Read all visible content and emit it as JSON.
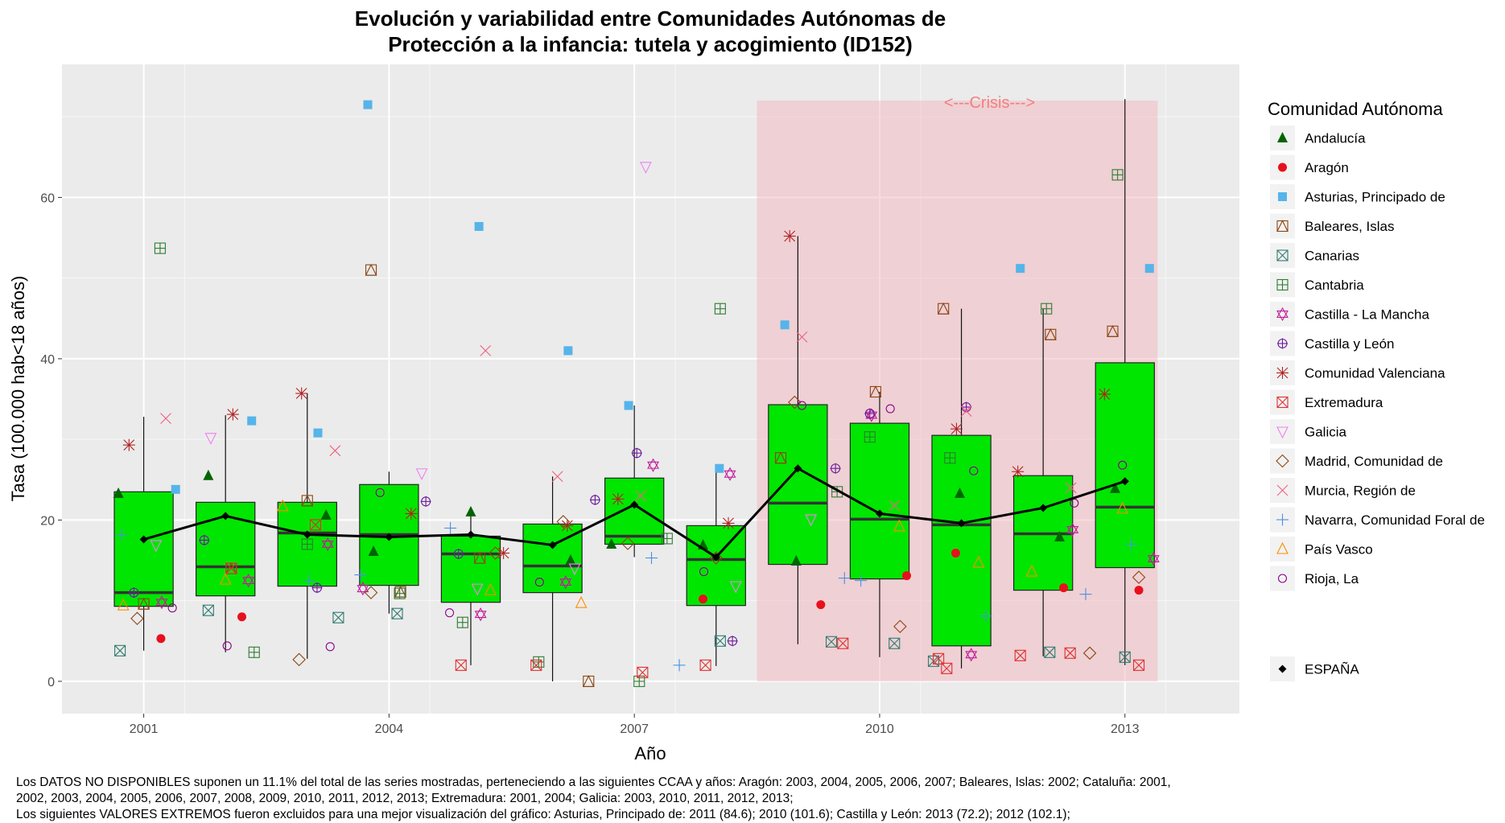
{
  "title": [
    "Evolución y variabilidad entre Comunidades Autónomas de",
    "Protección a la infancia: tutela y acogimiento (ID152)"
  ],
  "crisis_label": "<---Crisis--->",
  "legend": {
    "title": "Comunidad Autónoma",
    "items": [
      {
        "name": "Andalucía",
        "color": "#006400",
        "shape": "triangle-filled"
      },
      {
        "name": "Aragón",
        "color": "#e8101c",
        "shape": "circle-filled"
      },
      {
        "name": "Asturias, Principado de",
        "color": "#56b4e9",
        "shape": "square-filled"
      },
      {
        "name": "Baleares, Islas",
        "color": "#8b4513",
        "shape": "square-triangle"
      },
      {
        "name": "Canarias",
        "color": "#2f7b6f",
        "shape": "square-x"
      },
      {
        "name": "Cantabria",
        "color": "#2e7d32",
        "shape": "square-plus"
      },
      {
        "name": "Castilla - La Mancha",
        "color": "#c21a9a",
        "shape": "star-david"
      },
      {
        "name": "Castilla y León",
        "color": "#6a1b9a",
        "shape": "circle-plus"
      },
      {
        "name": "Comunidad Valenciana",
        "color": "#b22222",
        "shape": "asterisk"
      },
      {
        "name": "Extremadura",
        "color": "#e03030",
        "shape": "square-x"
      },
      {
        "name": "Galicia",
        "color": "#ee82ee",
        "shape": "triangle-down"
      },
      {
        "name": "Madrid, Comunidad de",
        "color": "#8b4513",
        "shape": "diamond"
      },
      {
        "name": "Murcia, Región de",
        "color": "#f06080",
        "shape": "x"
      },
      {
        "name": "Navarra, Comunidad Foral de",
        "color": "#4a90e2",
        "shape": "plus"
      },
      {
        "name": "País Vasco",
        "color": "#ff8c00",
        "shape": "triangle"
      },
      {
        "name": "Rioja, La",
        "color": "#8b008b",
        "shape": "circle"
      }
    ],
    "spain": {
      "name": "ESPAÑA",
      "color": "#000000",
      "shape": "diamond-filled"
    }
  },
  "chart_data": {
    "type": "box",
    "xlabel": "Año",
    "ylabel": "Tasa (100.000 hab<18 años)",
    "x_ticks": [
      2001,
      2004,
      2007,
      2010,
      2013
    ],
    "xlim": [
      2000,
      2014.4
    ],
    "y_ticks": [
      0,
      20,
      40,
      60
    ],
    "ylim": [
      -4,
      76.5
    ],
    "crisis_span": {
      "from": 2008.5,
      "to": 2013.4,
      "ymin": 0,
      "ymax": 72
    },
    "boxes": [
      {
        "year": 2001,
        "q1": 9.3,
        "median": 11.0,
        "q3": 23.5,
        "low": 3.8,
        "high": 32.8
      },
      {
        "year": 2002,
        "q1": 10.6,
        "median": 14.2,
        "q3": 22.2,
        "low": 3.6,
        "high": 33.0
      },
      {
        "year": 2003,
        "q1": 11.8,
        "median": 18.4,
        "q3": 22.2,
        "low": 2.8,
        "high": 35.7
      },
      {
        "year": 2004,
        "q1": 11.9,
        "median": 18.2,
        "q3": 24.4,
        "low": 8.4,
        "high": 26.0
      },
      {
        "year": 2005,
        "q1": 9.8,
        "median": 15.8,
        "q3": 18.0,
        "low": 2.0,
        "high": 21.0
      },
      {
        "year": 2006,
        "q1": 11.0,
        "median": 14.3,
        "q3": 19.5,
        "low": 0.0,
        "high": 25.4
      },
      {
        "year": 2007,
        "q1": 17.0,
        "median": 18.0,
        "q3": 25.2,
        "low": 15.4,
        "high": 34.2
      },
      {
        "year": 2008,
        "q1": 9.4,
        "median": 15.1,
        "q3": 19.3,
        "low": 1.9,
        "high": 26.4
      },
      {
        "year": 2009,
        "q1": 14.5,
        "median": 22.1,
        "q3": 34.3,
        "low": 4.6,
        "high": 55.2
      },
      {
        "year": 2010,
        "q1": 12.7,
        "median": 20.1,
        "q3": 32.0,
        "low": 3.0,
        "high": 35.9
      },
      {
        "year": 2011,
        "q1": 4.4,
        "median": 19.4,
        "q3": 30.5,
        "low": 1.6,
        "high": 46.2
      },
      {
        "year": 2012,
        "q1": 11.3,
        "median": 18.3,
        "q3": 25.5,
        "low": 3.1,
        "high": 46.2
      },
      {
        "year": 2013,
        "q1": 14.1,
        "median": 21.6,
        "q3": 39.5,
        "low": 2.0,
        "high": 72.2
      }
    ],
    "espana": [
      {
        "x": 2001,
        "y": 17.6
      },
      {
        "x": 2002,
        "y": 20.5
      },
      {
        "x": 2003,
        "y": 18.2
      },
      {
        "x": 2004,
        "y": 17.9
      },
      {
        "x": 2005,
        "y": 18.2
      },
      {
        "x": 2006,
        "y": 16.9
      },
      {
        "x": 2007,
        "y": 21.9
      },
      {
        "x": 2008,
        "y": 15.4
      },
      {
        "x": 2009,
        "y": 26.4
      },
      {
        "x": 2010,
        "y": 20.8
      },
      {
        "x": 2011,
        "y": 19.6
      },
      {
        "x": 2012,
        "y": 21.5
      },
      {
        "x": 2013,
        "y": 24.8
      }
    ],
    "points": [
      {
        "c": 0,
        "x": 2000.69,
        "y": 23.3
      },
      {
        "c": 0,
        "x": 2001.79,
        "y": 25.5
      },
      {
        "c": 0,
        "x": 2003.23,
        "y": 20.6
      },
      {
        "c": 0,
        "x": 2003.81,
        "y": 16.1
      },
      {
        "c": 0,
        "x": 2005.0,
        "y": 21.0
      },
      {
        "c": 0,
        "x": 2006.22,
        "y": 15.0
      },
      {
        "c": 0,
        "x": 2006.72,
        "y": 17.0
      },
      {
        "c": 0,
        "x": 2007.84,
        "y": 16.9
      },
      {
        "c": 0,
        "x": 2008.98,
        "y": 14.9
      },
      {
        "c": 0,
        "x": 2010.98,
        "y": 23.3
      },
      {
        "c": 0,
        "x": 2012.2,
        "y": 17.9
      },
      {
        "c": 0,
        "x": 2012.88,
        "y": 23.9
      },
      {
        "c": 1,
        "x": 2001.21,
        "y": 5.3
      },
      {
        "c": 1,
        "x": 2002.2,
        "y": 8.0
      },
      {
        "c": 1,
        "x": 2007.84,
        "y": 10.2
      },
      {
        "c": 1,
        "x": 2009.28,
        "y": 9.5
      },
      {
        "c": 1,
        "x": 2010.33,
        "y": 13.1
      },
      {
        "c": 1,
        "x": 2010.93,
        "y": 15.9
      },
      {
        "c": 1,
        "x": 2012.25,
        "y": 11.6
      },
      {
        "c": 1,
        "x": 2013.17,
        "y": 11.3
      },
      {
        "c": 2,
        "x": 2001.39,
        "y": 23.8
      },
      {
        "c": 2,
        "x": 2002.32,
        "y": 32.3
      },
      {
        "c": 2,
        "x": 2003.13,
        "y": 30.8
      },
      {
        "c": 2,
        "x": 2003.74,
        "y": 71.5
      },
      {
        "c": 2,
        "x": 2005.1,
        "y": 56.4
      },
      {
        "c": 2,
        "x": 2006.19,
        "y": 41.0
      },
      {
        "c": 2,
        "x": 2006.93,
        "y": 34.2
      },
      {
        "c": 2,
        "x": 2008.04,
        "y": 26.4
      },
      {
        "c": 2,
        "x": 2008.84,
        "y": 44.2
      },
      {
        "c": 2,
        "x": 2011.72,
        "y": 51.2
      },
      {
        "c": 2,
        "x": 2013.3,
        "y": 51.2
      },
      {
        "c": 3,
        "x": 2001.0,
        "y": 9.6
      },
      {
        "c": 3,
        "x": 2002.07,
        "y": 14.0
      },
      {
        "c": 3,
        "x": 2003.0,
        "y": 22.4
      },
      {
        "c": 3,
        "x": 2003.78,
        "y": 51.0
      },
      {
        "c": 3,
        "x": 2004.14,
        "y": 11.1
      },
      {
        "c": 3,
        "x": 2005.11,
        "y": 15.3
      },
      {
        "c": 3,
        "x": 2006.44,
        "y": 0.0
      },
      {
        "c": 3,
        "x": 2008.79,
        "y": 27.7
      },
      {
        "c": 3,
        "x": 2009.95,
        "y": 35.9
      },
      {
        "c": 3,
        "x": 2010.78,
        "y": 46.2
      },
      {
        "c": 3,
        "x": 2012.09,
        "y": 43.0
      },
      {
        "c": 3,
        "x": 2012.85,
        "y": 43.4
      },
      {
        "c": 4,
        "x": 2000.71,
        "y": 3.8
      },
      {
        "c": 4,
        "x": 2001.79,
        "y": 8.8
      },
      {
        "c": 4,
        "x": 2003.38,
        "y": 7.9
      },
      {
        "c": 4,
        "x": 2004.1,
        "y": 8.4
      },
      {
        "c": 4,
        "x": 2008.05,
        "y": 5.0
      },
      {
        "c": 4,
        "x": 2009.41,
        "y": 4.9
      },
      {
        "c": 4,
        "x": 2010.18,
        "y": 4.7
      },
      {
        "c": 4,
        "x": 2010.66,
        "y": 2.5
      },
      {
        "c": 4,
        "x": 2012.08,
        "y": 3.6
      },
      {
        "c": 4,
        "x": 2013.0,
        "y": 3.0
      },
      {
        "c": 5,
        "x": 2001.2,
        "y": 53.7
      },
      {
        "c": 5,
        "x": 2002.35,
        "y": 3.6
      },
      {
        "c": 5,
        "x": 2003.0,
        "y": 17.0
      },
      {
        "c": 5,
        "x": 2004.13,
        "y": 10.9
      },
      {
        "c": 5,
        "x": 2004.9,
        "y": 7.3
      },
      {
        "c": 5,
        "x": 2005.83,
        "y": 2.4
      },
      {
        "c": 5,
        "x": 2007.06,
        "y": 0.0
      },
      {
        "c": 5,
        "x": 2007.4,
        "y": 17.7
      },
      {
        "c": 5,
        "x": 2008.05,
        "y": 46.2
      },
      {
        "c": 5,
        "x": 2009.48,
        "y": 23.5
      },
      {
        "c": 5,
        "x": 2009.88,
        "y": 30.3
      },
      {
        "c": 5,
        "x": 2010.86,
        "y": 27.7
      },
      {
        "c": 5,
        "x": 2012.04,
        "y": 46.2
      },
      {
        "c": 5,
        "x": 2012.91,
        "y": 62.8
      },
      {
        "c": 6,
        "x": 2001.22,
        "y": 9.8
      },
      {
        "c": 6,
        "x": 2002.28,
        "y": 12.5
      },
      {
        "c": 6,
        "x": 2003.25,
        "y": 17.0
      },
      {
        "c": 6,
        "x": 2003.68,
        "y": 11.5
      },
      {
        "c": 6,
        "x": 2005.12,
        "y": 8.3
      },
      {
        "c": 6,
        "x": 2006.16,
        "y": 12.3
      },
      {
        "c": 6,
        "x": 2007.23,
        "y": 26.8
      },
      {
        "c": 6,
        "x": 2008.17,
        "y": 25.7
      },
      {
        "c": 6,
        "x": 2009.9,
        "y": 33.0
      },
      {
        "c": 6,
        "x": 2011.12,
        "y": 3.3
      },
      {
        "c": 6,
        "x": 2012.36,
        "y": 18.8
      },
      {
        "c": 6,
        "x": 2013.35,
        "y": 15.2
      },
      {
        "c": 7,
        "x": 2000.88,
        "y": 11.0
      },
      {
        "c": 7,
        "x": 2001.74,
        "y": 17.5
      },
      {
        "c": 7,
        "x": 2003.12,
        "y": 11.6
      },
      {
        "c": 7,
        "x": 2004.45,
        "y": 22.3
      },
      {
        "c": 7,
        "x": 2004.85,
        "y": 15.8
      },
      {
        "c": 7,
        "x": 2006.52,
        "y": 22.5
      },
      {
        "c": 7,
        "x": 2007.03,
        "y": 28.3
      },
      {
        "c": 7,
        "x": 2008.2,
        "y": 5.0
      },
      {
        "c": 7,
        "x": 2009.46,
        "y": 26.4
      },
      {
        "c": 7,
        "x": 2009.88,
        "y": 33.2
      },
      {
        "c": 7,
        "x": 2011.06,
        "y": 34.0
      },
      {
        "c": 8,
        "x": 2000.82,
        "y": 29.3
      },
      {
        "c": 8,
        "x": 2002.09,
        "y": 33.1
      },
      {
        "c": 8,
        "x": 2002.93,
        "y": 35.7
      },
      {
        "c": 8,
        "x": 2004.27,
        "y": 20.8
      },
      {
        "c": 8,
        "x": 2005.4,
        "y": 15.9
      },
      {
        "c": 8,
        "x": 2006.18,
        "y": 19.3
      },
      {
        "c": 8,
        "x": 2006.8,
        "y": 22.6
      },
      {
        "c": 8,
        "x": 2008.15,
        "y": 19.6
      },
      {
        "c": 8,
        "x": 2008.9,
        "y": 55.2
      },
      {
        "c": 8,
        "x": 2010.94,
        "y": 31.3
      },
      {
        "c": 8,
        "x": 2011.69,
        "y": 26.0
      },
      {
        "c": 8,
        "x": 2012.75,
        "y": 35.6
      },
      {
        "c": 9,
        "x": 2002.07,
        "y": 14.0
      },
      {
        "c": 9,
        "x": 2003.1,
        "y": 19.4
      },
      {
        "c": 9,
        "x": 2004.88,
        "y": 2.0
      },
      {
        "c": 9,
        "x": 2005.8,
        "y": 2.0
      },
      {
        "c": 9,
        "x": 2007.1,
        "y": 1.1
      },
      {
        "c": 9,
        "x": 2007.87,
        "y": 2.0
      },
      {
        "c": 9,
        "x": 2009.55,
        "y": 4.7
      },
      {
        "c": 9,
        "x": 2010.82,
        "y": 1.6
      },
      {
        "c": 9,
        "x": 2011.72,
        "y": 3.2
      },
      {
        "c": 9,
        "x": 2012.33,
        "y": 3.5
      },
      {
        "c": 9,
        "x": 2013.17,
        "y": 2.0
      },
      {
        "c": 9,
        "x": 2010.72,
        "y": 2.8
      },
      {
        "c": 10,
        "x": 2001.15,
        "y": 16.9
      },
      {
        "c": 10,
        "x": 2001.82,
        "y": 30.2
      },
      {
        "c": 10,
        "x": 2004.4,
        "y": 25.8
      },
      {
        "c": 10,
        "x": 2005.08,
        "y": 11.5
      },
      {
        "c": 10,
        "x": 2006.27,
        "y": 14.0
      },
      {
        "c": 10,
        "x": 2007.14,
        "y": 63.8
      },
      {
        "c": 10,
        "x": 2008.24,
        "y": 11.8
      },
      {
        "c": 10,
        "x": 2009.16,
        "y": 20.1
      },
      {
        "c": 11,
        "x": 2000.92,
        "y": 7.8
      },
      {
        "c": 11,
        "x": 2002.9,
        "y": 2.7
      },
      {
        "c": 11,
        "x": 2003.78,
        "y": 11.0
      },
      {
        "c": 11,
        "x": 2005.3,
        "y": 15.9
      },
      {
        "c": 11,
        "x": 2006.13,
        "y": 19.8
      },
      {
        "c": 11,
        "x": 2006.92,
        "y": 17.1
      },
      {
        "c": 11,
        "x": 2008.0,
        "y": 15.3
      },
      {
        "c": 11,
        "x": 2008.96,
        "y": 34.6
      },
      {
        "c": 11,
        "x": 2010.25,
        "y": 6.8
      },
      {
        "c": 11,
        "x": 2012.57,
        "y": 3.5
      },
      {
        "c": 11,
        "x": 2013.17,
        "y": 12.9
      },
      {
        "c": 12,
        "x": 2001.27,
        "y": 32.6
      },
      {
        "c": 12,
        "x": 2003.34,
        "y": 28.6
      },
      {
        "c": 12,
        "x": 2005.18,
        "y": 41.0
      },
      {
        "c": 12,
        "x": 2006.06,
        "y": 25.4
      },
      {
        "c": 12,
        "x": 2007.08,
        "y": 23.0
      },
      {
        "c": 12,
        "x": 2009.05,
        "y": 42.7
      },
      {
        "c": 12,
        "x": 2010.18,
        "y": 21.8
      },
      {
        "c": 12,
        "x": 2011.06,
        "y": 33.5
      },
      {
        "c": 12,
        "x": 2012.34,
        "y": 24.0
      },
      {
        "c": 13,
        "x": 2000.73,
        "y": 18.2
      },
      {
        "c": 13,
        "x": 2003.02,
        "y": 12.5
      },
      {
        "c": 13,
        "x": 2003.65,
        "y": 13.2
      },
      {
        "c": 13,
        "x": 2004.75,
        "y": 19.0
      },
      {
        "c": 13,
        "x": 2007.21,
        "y": 15.3
      },
      {
        "c": 13,
        "x": 2007.55,
        "y": 2.0
      },
      {
        "c": 13,
        "x": 2009.57,
        "y": 12.8
      },
      {
        "c": 13,
        "x": 2009.77,
        "y": 12.5
      },
      {
        "c": 13,
        "x": 2011.3,
        "y": 8.1
      },
      {
        "c": 13,
        "x": 2012.52,
        "y": 10.8
      },
      {
        "c": 13,
        "x": 2013.08,
        "y": 17.0
      },
      {
        "c": 14,
        "x": 2000.75,
        "y": 9.4
      },
      {
        "c": 14,
        "x": 2002.0,
        "y": 12.6
      },
      {
        "c": 14,
        "x": 2002.7,
        "y": 21.7
      },
      {
        "c": 14,
        "x": 2005.24,
        "y": 11.3
      },
      {
        "c": 14,
        "x": 2006.35,
        "y": 9.7
      },
      {
        "c": 14,
        "x": 2010.24,
        "y": 19.2
      },
      {
        "c": 14,
        "x": 2011.21,
        "y": 14.7
      },
      {
        "c": 14,
        "x": 2011.86,
        "y": 13.6
      },
      {
        "c": 14,
        "x": 2012.97,
        "y": 21.4
      },
      {
        "c": 15,
        "x": 2001.35,
        "y": 9.1
      },
      {
        "c": 15,
        "x": 2002.02,
        "y": 4.4
      },
      {
        "c": 15,
        "x": 2003.28,
        "y": 4.3
      },
      {
        "c": 15,
        "x": 2003.89,
        "y": 23.4
      },
      {
        "c": 15,
        "x": 2004.74,
        "y": 8.5
      },
      {
        "c": 15,
        "x": 2005.84,
        "y": 12.3
      },
      {
        "c": 15,
        "x": 2007.85,
        "y": 13.6
      },
      {
        "c": 15,
        "x": 2009.05,
        "y": 34.2
      },
      {
        "c": 15,
        "x": 2010.13,
        "y": 33.8
      },
      {
        "c": 15,
        "x": 2011.15,
        "y": 26.1
      },
      {
        "c": 15,
        "x": 2012.38,
        "y": 22.1
      },
      {
        "c": 15,
        "x": 2012.97,
        "y": 26.8
      }
    ]
  },
  "footnotes": [
    "Los DATOS NO DISPONIBLES suponen un 11.1% del total de las series mostradas, perteneciendo a las siguientes CCAA y años: Aragón: 2003, 2004, 2005, 2006, 2007; Baleares, Islas: 2002; Cataluña: 2001,",
    " 2002, 2003, 2004, 2005, 2006, 2007, 2008, 2009, 2010, 2011, 2012, 2013; Extremadura: 2001, 2004; Galicia: 2003, 2010, 2011, 2012, 2013;",
    "Los siguientes VALORES EXTREMOS fueron excluidos para una mejor visualización del gráfico: Asturias, Principado de: 2011 (84.6); 2010 (101.6); Castilla y León: 2013 (72.2); 2012 (102.1);"
  ]
}
